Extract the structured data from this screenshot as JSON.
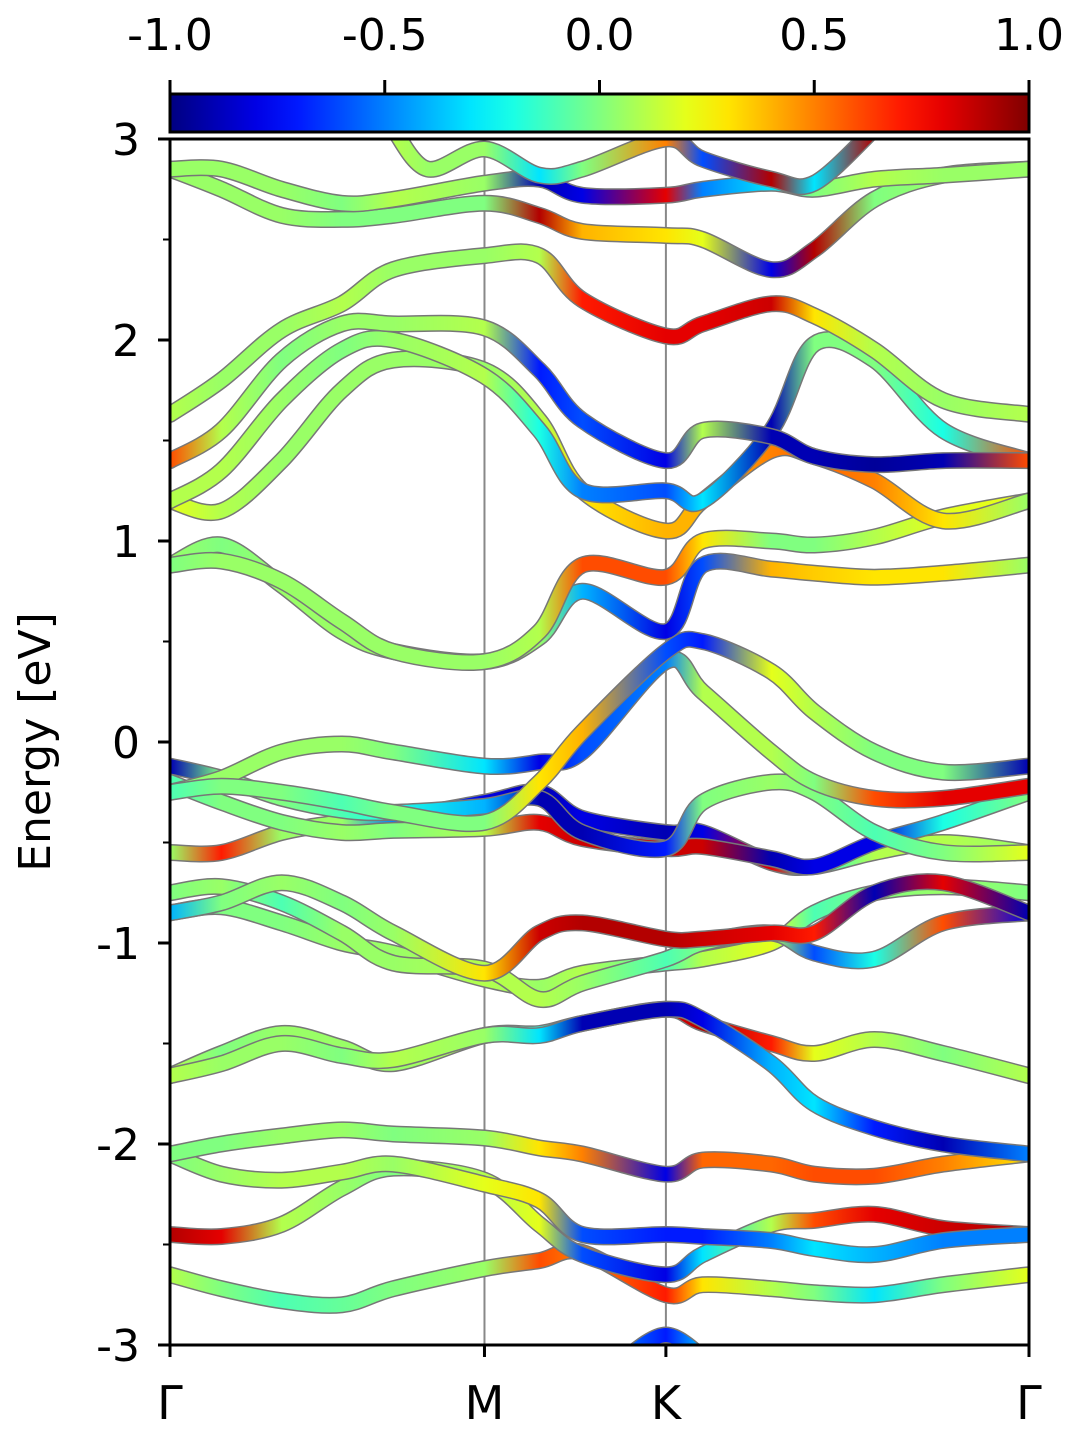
{
  "chart_data": {
    "type": "line",
    "title": "",
    "ylabel": "Energy [eV]",
    "xlabel": "",
    "ylim": [
      -3,
      3
    ],
    "y_ticks": [
      3,
      2,
      1,
      0,
      -1,
      -2,
      -3
    ],
    "y_tick_labels": [
      "3",
      "2",
      "1",
      "0",
      "-1",
      "-2",
      "-3"
    ],
    "x_ticks": [
      0,
      0.3661,
      0.5773,
      1.0
    ],
    "x_tick_labels": [
      "Γ",
      "M",
      "K",
      "Γ"
    ],
    "grid": false,
    "colorbar": {
      "colormap": "jet",
      "range": [
        -1.0,
        1.0
      ],
      "ticks": [
        -1.0,
        -0.5,
        0.0,
        0.5,
        1.0
      ],
      "tick_labels": [
        "-1.0",
        "-0.5",
        "0.0",
        "0.5",
        "1.0"
      ],
      "placement": "top"
    },
    "series": [
      {
        "x": [
          0,
          0.06,
          0.13,
          0.2,
          0.26,
          0.3661,
          0.43,
          0.48,
          0.5773,
          0.62,
          0.7,
          0.75,
          0.82,
          0.9,
          1.0
        ],
        "y": [
          -2.65,
          -2.72,
          -2.78,
          -2.8,
          -2.72,
          -2.62,
          -2.58,
          -2.54,
          -2.75,
          -2.7,
          -2.72,
          -2.74,
          -2.75,
          -2.7,
          -2.65
        ],
        "c": [
          0.1,
          0.0,
          -0.1,
          -0.05,
          0.0,
          0.05,
          0.6,
          0.5,
          0.7,
          0.3,
          0.1,
          0.0,
          -0.3,
          0.0,
          0.2
        ]
      },
      {
        "x": [
          0,
          0.06,
          0.13,
          0.2,
          0.26,
          0.3661,
          0.43,
          0.48,
          0.5773,
          0.62,
          0.7,
          0.75,
          0.82,
          0.9,
          1.0
        ],
        "y": [
          -2.45,
          -2.46,
          -2.4,
          -2.22,
          -2.12,
          -2.18,
          -2.4,
          -2.55,
          -2.65,
          -2.55,
          -2.4,
          -2.38,
          -2.35,
          -2.42,
          -2.45
        ],
        "c": [
          0.9,
          0.8,
          0.1,
          0.05,
          0.0,
          0.1,
          0.2,
          -0.6,
          -0.8,
          -0.3,
          0.1,
          0.6,
          0.8,
          0.85,
          0.9
        ]
      },
      {
        "x": [
          0,
          0.06,
          0.13,
          0.2,
          0.26,
          0.3661,
          0.43,
          0.48,
          0.5773,
          0.62,
          0.7,
          0.75,
          0.82,
          0.9,
          1.0
        ],
        "y": [
          -2.05,
          -2.15,
          -2.18,
          -2.14,
          -2.1,
          -2.2,
          -2.28,
          -2.45,
          -2.45,
          -2.46,
          -2.48,
          -2.52,
          -2.55,
          -2.48,
          -2.45
        ],
        "c": [
          0.0,
          0.05,
          0.1,
          0.1,
          0.05,
          0.2,
          0.3,
          -0.6,
          -0.7,
          -0.7,
          -0.5,
          -0.3,
          -0.4,
          -0.5,
          -0.5
        ]
      },
      {
        "x": [
          0,
          0.06,
          0.13,
          0.2,
          0.26,
          0.3661,
          0.43,
          0.48,
          0.5773,
          0.62,
          0.7,
          0.75,
          0.82,
          0.9,
          1.0
        ],
        "y": [
          -2.05,
          -2.0,
          -1.96,
          -1.93,
          -1.95,
          -1.97,
          -2.02,
          -2.05,
          -2.15,
          -2.08,
          -2.1,
          -2.15,
          -2.16,
          -2.1,
          -2.05
        ],
        "c": [
          0.0,
          0.0,
          0.05,
          0.05,
          0.0,
          0.05,
          0.3,
          0.5,
          -0.8,
          0.55,
          0.55,
          0.6,
          0.6,
          0.5,
          0.3
        ]
      },
      {
        "x": [
          0,
          0.06,
          0.13,
          0.2,
          0.26,
          0.3661,
          0.43,
          0.48,
          0.5773,
          0.62,
          0.7,
          0.75,
          0.82,
          0.9,
          1.0
        ],
        "y": [
          -1.66,
          -1.55,
          -1.45,
          -1.52,
          -1.6,
          -1.46,
          -1.45,
          -1.4,
          -1.33,
          -1.4,
          -1.5,
          -1.55,
          -1.48,
          -1.55,
          -1.66
        ],
        "c": [
          0.1,
          0.0,
          0.05,
          0.05,
          0.05,
          0.1,
          -0.2,
          0.7,
          0.8,
          0.9,
          0.7,
          0.2,
          0.1,
          0.0,
          0.1
        ]
      },
      {
        "x": [
          0,
          0.06,
          0.13,
          0.2,
          0.26,
          0.3661,
          0.43,
          0.48,
          0.5773,
          0.62,
          0.7,
          0.75,
          0.82,
          0.9,
          1.0
        ],
        "y": [
          -1.66,
          -1.6,
          -1.5,
          -1.56,
          -1.58,
          -1.46,
          -1.46,
          -1.4,
          -1.33,
          -1.38,
          -1.6,
          -1.8,
          -1.92,
          -2.0,
          -2.05
        ],
        "c": [
          0.1,
          0.05,
          0.05,
          0.0,
          0.1,
          0.05,
          -0.3,
          -0.9,
          -0.9,
          -0.8,
          -0.4,
          -0.3,
          -0.7,
          -0.9,
          -0.5
        ]
      },
      {
        "x": [
          0,
          0.06,
          0.13,
          0.2,
          0.26,
          0.3661,
          0.43,
          0.48,
          0.5773,
          0.62,
          0.7,
          0.75,
          0.82,
          0.9,
          1.0
        ],
        "y": [
          -0.85,
          -0.82,
          -0.9,
          -1.0,
          -1.05,
          -1.18,
          -1.22,
          -1.15,
          -1.1,
          -1.08,
          -1.0,
          -0.85,
          -0.75,
          -0.72,
          -0.75
        ],
        "c": [
          -0.3,
          0.0,
          0.0,
          0.05,
          0.05,
          0.1,
          0.05,
          0.1,
          -0.1,
          0.1,
          0.2,
          -0.1,
          0.0,
          0.05,
          0.0
        ]
      },
      {
        "x": [
          0,
          0.06,
          0.13,
          0.2,
          0.26,
          0.3661,
          0.43,
          0.48,
          0.5773,
          0.62,
          0.7,
          0.75,
          0.82,
          0.9,
          1.0
        ],
        "y": [
          -0.75,
          -0.72,
          -0.8,
          -0.95,
          -1.1,
          -1.13,
          -1.28,
          -1.2,
          -1.08,
          -1.0,
          -0.95,
          -1.05,
          -1.08,
          -0.9,
          -0.85
        ],
        "c": [
          0.0,
          0.05,
          -0.1,
          0.05,
          0.05,
          0.1,
          0.1,
          0.05,
          -0.1,
          0.0,
          0.1,
          -0.6,
          -0.2,
          0.6,
          -0.8
        ]
      },
      {
        "x": [
          0,
          0.06,
          0.13,
          0.2,
          0.26,
          0.3661,
          0.43,
          0.48,
          0.5773,
          0.62,
          0.7,
          0.75,
          0.82,
          0.9,
          1.0
        ],
        "y": [
          -0.85,
          -0.8,
          -0.7,
          -0.8,
          -0.95,
          -1.15,
          -0.95,
          -0.9,
          -0.98,
          -0.98,
          -0.95,
          -0.95,
          -0.75,
          -0.7,
          -0.85
        ],
        "c": [
          -0.4,
          0.0,
          0.05,
          0.0,
          0.05,
          0.3,
          0.85,
          0.9,
          0.9,
          0.85,
          0.8,
          0.7,
          -0.9,
          0.8,
          -0.9
        ]
      },
      {
        "x": [
          0,
          0.06,
          0.13,
          0.2,
          0.26,
          0.3661,
          0.43,
          0.48,
          0.5773,
          0.62,
          0.7,
          0.75,
          0.82,
          0.9,
          1.0
        ],
        "y": [
          -0.55,
          -0.55,
          -0.45,
          -0.4,
          -0.38,
          -0.3,
          -0.25,
          -0.38,
          -0.45,
          -0.45,
          -0.6,
          -0.62,
          -0.55,
          -0.5,
          -0.55
        ],
        "c": [
          0.05,
          0.7,
          0.05,
          0.05,
          -0.5,
          -0.8,
          -0.9,
          -0.8,
          -0.9,
          -0.8,
          0.8,
          -0.2,
          0.1,
          0.1,
          0.05
        ]
      },
      {
        "x": [
          0,
          0.06,
          0.13,
          0.2,
          0.26,
          0.3661,
          0.43,
          0.48,
          0.5773,
          0.62,
          0.7,
          0.75,
          0.82,
          0.9,
          1.0
        ],
        "y": [
          -0.2,
          -0.3,
          -0.4,
          -0.45,
          -0.44,
          -0.43,
          -0.4,
          -0.48,
          -0.53,
          -0.52,
          -0.58,
          -0.62,
          -0.5,
          -0.4,
          -0.25
        ],
        "c": [
          -0.1,
          0.0,
          0.0,
          0.05,
          0.0,
          0.1,
          0.8,
          0.85,
          0.85,
          0.85,
          -0.9,
          -0.8,
          -0.8,
          -0.2,
          0.0
        ]
      },
      {
        "x": [
          0,
          0.06,
          0.13,
          0.2,
          0.26,
          0.3661,
          0.43,
          0.48,
          0.5773,
          0.62,
          0.7,
          0.75,
          0.82,
          0.9,
          1.0
        ],
        "y": [
          -0.12,
          -0.18,
          -0.28,
          -0.34,
          -0.35,
          -0.32,
          -0.28,
          -0.45,
          -0.53,
          -0.3,
          -0.2,
          -0.25,
          -0.45,
          -0.55,
          -0.55
        ],
        "c": [
          -0.9,
          0.0,
          0.0,
          -0.1,
          -0.2,
          -0.4,
          -0.9,
          -0.9,
          -0.7,
          0.0,
          0.05,
          0.0,
          -0.1,
          0.0,
          0.2
        ]
      },
      {
        "x": [
          0,
          0.06,
          0.13,
          0.2,
          0.26,
          0.3661,
          0.43,
          0.48,
          0.5773,
          0.62,
          0.7,
          0.75,
          0.82,
          0.9,
          1.0
        ],
        "y": [
          -0.25,
          -0.18,
          -0.05,
          -0.01,
          -0.05,
          -0.12,
          -0.1,
          -0.05,
          0.4,
          0.25,
          -0.05,
          -0.2,
          -0.28,
          -0.28,
          -0.22
        ],
        "c": [
          0.0,
          0.05,
          0.05,
          0.05,
          0.0,
          -0.3,
          -0.8,
          -0.6,
          -0.5,
          0.1,
          0.1,
          0.0,
          0.6,
          0.8,
          0.8
        ]
      },
      {
        "x": [
          0,
          0.06,
          0.13,
          0.2,
          0.26,
          0.3661,
          0.43,
          0.48,
          0.5773,
          0.62,
          0.7,
          0.75,
          0.82,
          0.9,
          1.0
        ],
        "y": [
          -0.25,
          -0.22,
          -0.25,
          -0.3,
          -0.35,
          -0.4,
          -0.2,
          0.05,
          0.45,
          0.5,
          0.35,
          0.15,
          -0.05,
          -0.15,
          -0.12
        ],
        "c": [
          -0.1,
          0.0,
          0.0,
          -0.1,
          0.0,
          0.0,
          0.3,
          0.4,
          -0.6,
          -0.7,
          0.2,
          0.1,
          0.0,
          0.0,
          -0.9
        ]
      },
      {
        "x": [
          0,
          0.06,
          0.13,
          0.2,
          0.26,
          0.3661,
          0.43,
          0.48,
          0.5773,
          0.62,
          0.7,
          0.75,
          0.82,
          0.9,
          1.0
        ],
        "y": [
          0.88,
          0.98,
          0.78,
          0.55,
          0.45,
          0.4,
          0.52,
          0.75,
          0.55,
          0.88,
          0.86,
          0.84,
          0.82,
          0.84,
          0.88
        ],
        "c": [
          0.05,
          0.0,
          0.05,
          0.05,
          0.05,
          0.05,
          0.05,
          -0.4,
          -0.8,
          -0.6,
          0.4,
          0.35,
          0.3,
          0.3,
          0.05
        ]
      },
      {
        "x": [
          0,
          0.06,
          0.13,
          0.2,
          0.26,
          0.3661,
          0.43,
          0.48,
          0.5773,
          0.62,
          0.7,
          0.75,
          0.82,
          0.9,
          1.0
        ],
        "y": [
          0.88,
          0.9,
          0.8,
          0.6,
          0.45,
          0.4,
          0.55,
          0.88,
          0.82,
          1.0,
          1.0,
          0.98,
          1.02,
          1.12,
          1.2
        ],
        "c": [
          0.0,
          0.05,
          0.05,
          0.05,
          0.05,
          0.05,
          0.1,
          0.6,
          0.6,
          0.3,
          0.0,
          0.0,
          0.1,
          0.2,
          0.2
        ]
      },
      {
        "x": [
          0,
          0.06,
          0.13,
          0.2,
          0.26,
          0.3661,
          0.43,
          0.48,
          0.5773,
          0.62,
          0.7,
          0.75,
          0.82,
          0.9,
          1.0
        ],
        "y": [
          1.2,
          1.15,
          1.4,
          1.75,
          1.9,
          1.85,
          1.6,
          1.25,
          1.05,
          1.2,
          1.45,
          1.42,
          1.3,
          1.1,
          1.2
        ],
        "c": [
          0.2,
          0.1,
          0.05,
          0.05,
          0.05,
          0.05,
          0.1,
          0.3,
          0.4,
          0.4,
          0.5,
          0.55,
          0.5,
          0.3,
          0.05
        ]
      },
      {
        "x": [
          0,
          0.06,
          0.13,
          0.2,
          0.26,
          0.3661,
          0.43,
          0.48,
          0.5773,
          0.62,
          0.7,
          0.75,
          0.82,
          0.9,
          1.0
        ],
        "y": [
          1.2,
          1.35,
          1.7,
          1.95,
          2.0,
          1.82,
          1.55,
          1.25,
          1.25,
          1.2,
          1.55,
          1.98,
          1.9,
          1.55,
          1.4
        ],
        "c": [
          0.1,
          0.1,
          0.05,
          0.0,
          0.05,
          0.1,
          -0.2,
          -0.5,
          -0.6,
          -0.3,
          -0.9,
          0.0,
          0.0,
          -0.2,
          0.6
        ]
      },
      {
        "x": [
          0,
          0.06,
          0.13,
          0.2,
          0.26,
          0.3661,
          0.43,
          0.48,
          0.5773,
          0.62,
          0.7,
          0.75,
          0.82,
          0.9,
          1.0
        ],
        "y": [
          1.4,
          1.55,
          1.9,
          2.08,
          2.08,
          2.06,
          1.85,
          1.6,
          1.4,
          1.55,
          1.52,
          1.42,
          1.38,
          1.4,
          1.4
        ],
        "c": [
          0.6,
          0.1,
          0.0,
          0.05,
          0.05,
          0.1,
          -0.7,
          -0.6,
          -0.8,
          0.1,
          -0.9,
          -0.9,
          -0.95,
          -0.9,
          0.6
        ]
      },
      {
        "x": [
          0,
          0.06,
          0.13,
          0.2,
          0.26,
          0.3661,
          0.43,
          0.48,
          0.5773,
          0.62,
          0.7,
          0.75,
          0.82,
          0.9,
          1.0
        ],
        "y": [
          1.63,
          1.8,
          2.05,
          2.18,
          2.35,
          2.42,
          2.42,
          2.2,
          2.02,
          2.08,
          2.18,
          2.12,
          1.95,
          1.7,
          1.63
        ],
        "c": [
          0.1,
          0.05,
          0.05,
          0.1,
          0.05,
          0.05,
          0.1,
          0.7,
          0.8,
          0.8,
          0.85,
          0.3,
          0.1,
          0.05,
          0.1
        ]
      },
      {
        "x": [
          0,
          0.06,
          0.13,
          0.2,
          0.26,
          0.3661,
          0.43,
          0.48,
          0.5773,
          0.62,
          0.7,
          0.75,
          0.82,
          0.9,
          1.0
        ],
        "y": [
          2.85,
          2.75,
          2.62,
          2.6,
          2.62,
          2.68,
          2.62,
          2.54,
          2.52,
          2.5,
          2.35,
          2.45,
          2.7,
          2.82,
          2.85
        ],
        "c": [
          0.05,
          0.05,
          0.05,
          0.0,
          0.0,
          0.0,
          0.9,
          0.4,
          0.3,
          0.2,
          -0.8,
          0.9,
          0.0,
          0.05,
          0.05
        ]
      },
      {
        "x": [
          0,
          0.06,
          0.13,
          0.2,
          0.26,
          0.3661,
          0.43,
          0.48,
          0.5773,
          0.62,
          0.7,
          0.75,
          0.82,
          0.9,
          1.0
        ],
        "y": [
          2.85,
          2.85,
          2.75,
          2.68,
          2.7,
          2.78,
          2.8,
          2.72,
          2.72,
          2.75,
          2.78,
          2.75,
          2.8,
          2.82,
          2.85
        ],
        "c": [
          0.05,
          0.05,
          0.05,
          0.0,
          0.1,
          0.05,
          -0.9,
          -0.8,
          0.8,
          -0.5,
          -0.3,
          0.0,
          0.1,
          0.05,
          0.05
        ]
      },
      {
        "x": [
          0.26,
          0.3,
          0.3661,
          0.43,
          0.48,
          0.5773,
          0.62,
          0.7,
          0.75,
          0.82
        ],
        "y": [
          3.05,
          2.85,
          2.95,
          2.82,
          2.85,
          3.0,
          2.9,
          2.8,
          2.78,
          3.05
        ],
        "c": [
          0.1,
          0.05,
          0.05,
          -0.3,
          0.0,
          0.5,
          -0.6,
          0.9,
          -0.3,
          0.9
        ]
      },
      {
        "x": [
          0.52,
          0.5773,
          0.63
        ],
        "y": [
          -3.1,
          -2.95,
          -3.1
        ],
        "c": [
          -0.5,
          -0.7,
          -0.3
        ]
      }
    ]
  }
}
